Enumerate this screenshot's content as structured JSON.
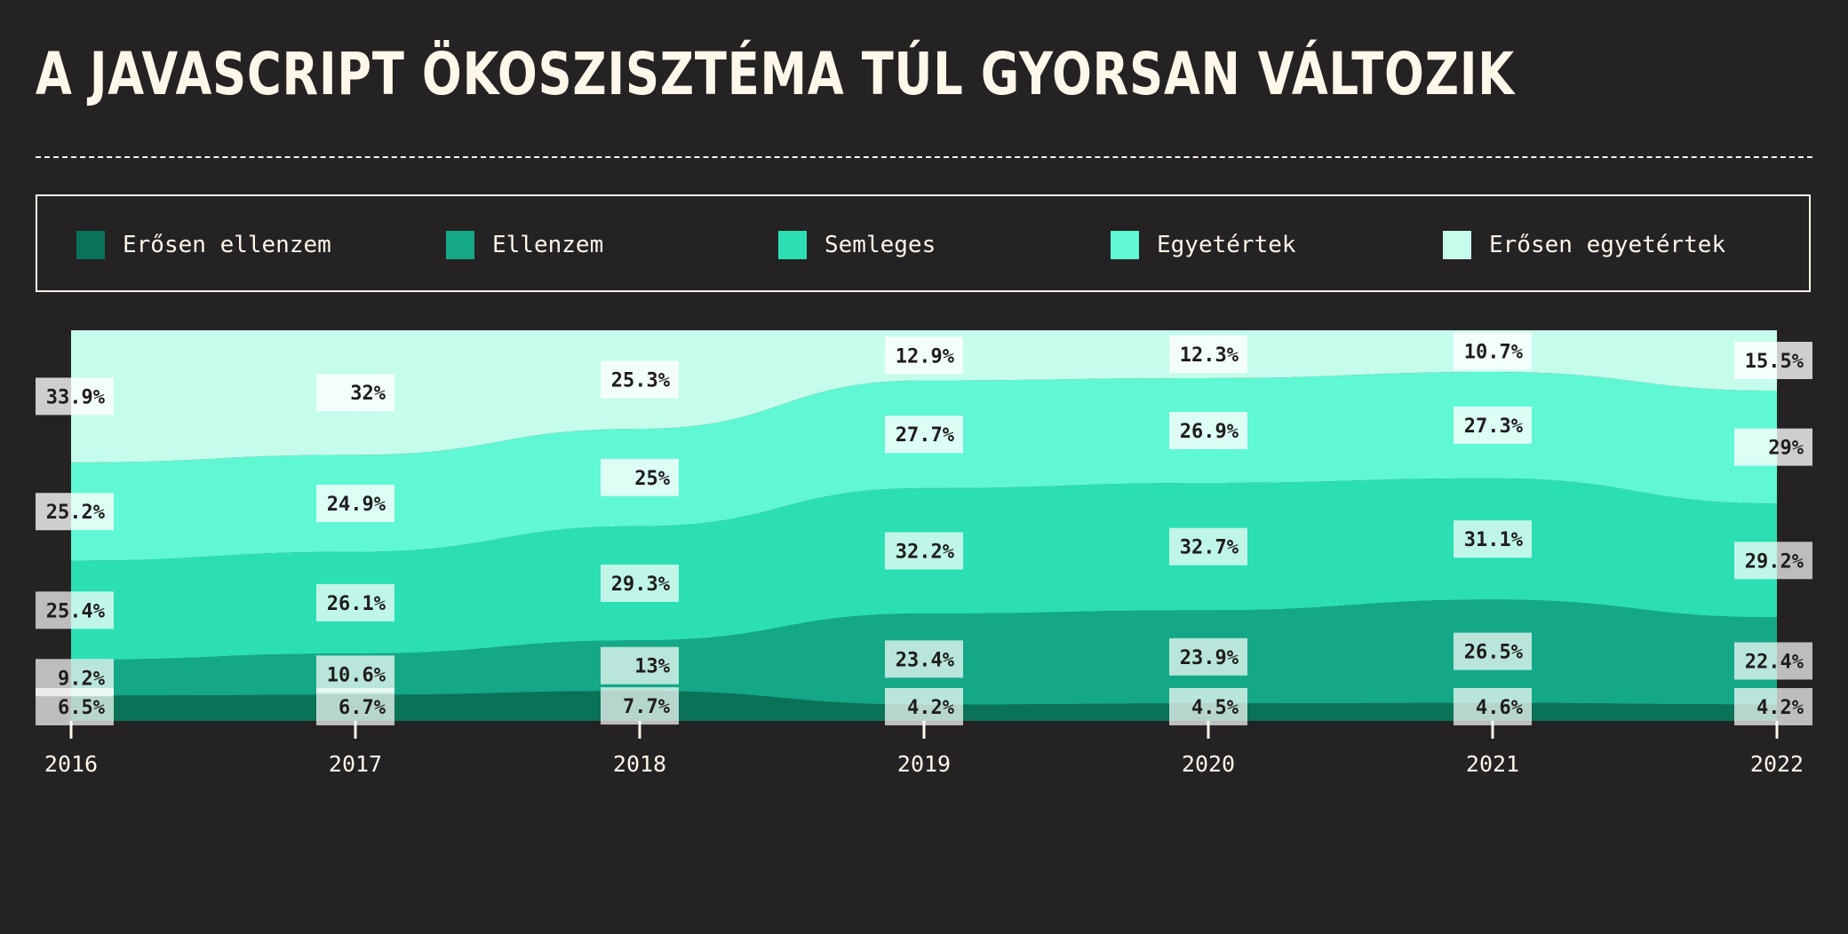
{
  "title": "A JAVASCRIPT ÖKOSZISZTÉMA TÚL GYORSAN VÁLTOZIK",
  "legend": [
    {
      "label": "Erősen ellenzem",
      "color": "#0a7257"
    },
    {
      "label": "Ellenzem",
      "color": "#14a887"
    },
    {
      "label": "Semleges",
      "color": "#2bdfb2"
    },
    {
      "label": "Egyetértek",
      "color": "#5ff8d3"
    },
    {
      "label": "Erősen egyetértek",
      "color": "#c6fcec"
    }
  ],
  "chart_data": {
    "type": "area",
    "stacked": true,
    "normalized": true,
    "title": "A JAVASCRIPT ÖKOSZISZTÉMA TÚL GYORSAN VÁLTOZIK",
    "x": [
      "2016",
      "2017",
      "2018",
      "2019",
      "2020",
      "2021",
      "2022"
    ],
    "ylim": [
      0,
      100
    ],
    "grid": false,
    "legend_position": "top",
    "series": [
      {
        "name": "Erősen ellenzem",
        "color": "#0a7257",
        "values": [
          6.5,
          6.7,
          7.7,
          4.2,
          4.5,
          4.6,
          4.2
        ]
      },
      {
        "name": "Ellenzem",
        "color": "#14a887",
        "values": [
          9.2,
          10.6,
          13,
          23.4,
          23.9,
          26.5,
          22.4
        ]
      },
      {
        "name": "Semleges",
        "color": "#2bdfb2",
        "values": [
          25.4,
          26.1,
          29.3,
          32.2,
          32.7,
          31.1,
          29.2
        ]
      },
      {
        "name": "Egyetértek",
        "color": "#5ff8d3",
        "values": [
          25.2,
          24.9,
          25,
          27.7,
          26.9,
          27.3,
          29
        ]
      },
      {
        "name": "Erősen egyetértek",
        "color": "#c6fcec",
        "values": [
          33.9,
          32,
          25.3,
          12.9,
          12.3,
          10.7,
          15.5
        ]
      }
    ],
    "data_labels": [
      [
        "6.5%",
        "6.7%",
        "7.7%",
        "4.2%",
        "4.5%",
        "4.6%",
        "4.2%"
      ],
      [
        "9.2%",
        "10.6%",
        "13%",
        "23.4%",
        "23.9%",
        "26.5%",
        "22.4%"
      ],
      [
        "25.4%",
        "26.1%",
        "29.3%",
        "32.2%",
        "32.7%",
        "31.1%",
        "29.2%"
      ],
      [
        "25.2%",
        "24.9%",
        "25%",
        "27.7%",
        "26.9%",
        "27.3%",
        "29%"
      ],
      [
        "33.9%",
        "32%",
        "25.3%",
        "12.9%",
        "12.3%",
        "10.7%",
        "15.5%"
      ]
    ]
  }
}
